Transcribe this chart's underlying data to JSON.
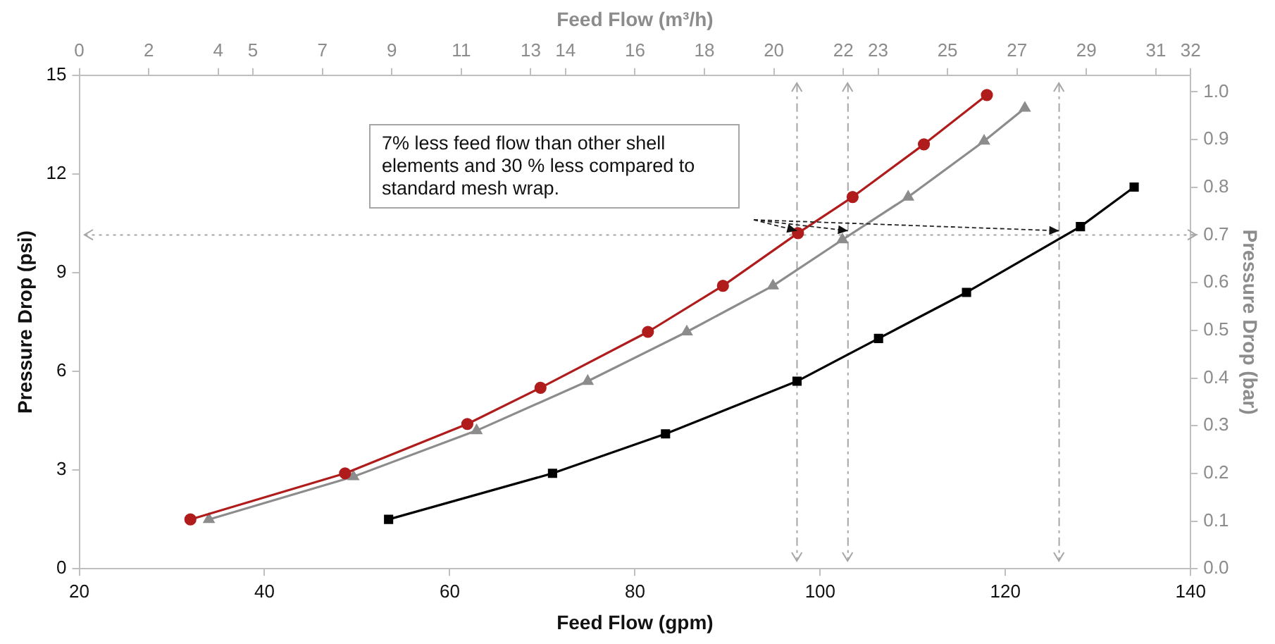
{
  "chart_data": {
    "type": "line",
    "xlabel": "Feed Flow (gpm)",
    "ylabel": "Pressure Drop (psi)",
    "x2label": "Feed Flow (m³/h)",
    "y2label": "Pressure Drop (bar)",
    "xlim": [
      20,
      140
    ],
    "xticks": [
      20,
      40,
      60,
      80,
      100,
      120,
      140
    ],
    "ylim": [
      0,
      15
    ],
    "yticks": [
      0,
      3,
      6,
      9,
      12,
      15
    ],
    "y2lim": [
      0,
      1.035
    ],
    "y2ticks": [
      {
        "value": 0,
        "label": "0.0"
      },
      {
        "value": 0.1,
        "label": "0.1"
      },
      {
        "value": 0.2,
        "label": "0.2"
      },
      {
        "value": 0.3,
        "label": "0.3"
      },
      {
        "value": 0.4,
        "label": "0.4"
      },
      {
        "value": 0.5,
        "label": "0.5"
      },
      {
        "value": 0.6,
        "label": "0.6"
      },
      {
        "value": 0.7,
        "label": "0.7"
      },
      {
        "value": 0.8,
        "label": "0.8"
      },
      {
        "value": 0.9,
        "label": "0.9"
      },
      {
        "value": 1,
        "label": "1.0"
      }
    ],
    "x2lim": [
      0,
      32
    ],
    "x2ticks": [
      0,
      2,
      4,
      5,
      7,
      9,
      11,
      13,
      14,
      16,
      18,
      20,
      22,
      23,
      25,
      27,
      29,
      31,
      32
    ],
    "grid": false,
    "legend": false,
    "series": [
      {
        "color": "#b01c1c",
        "marker": "circle",
        "x": [
          32.0,
          48.7,
          61.9,
          69.8,
          81.4,
          89.5,
          97.6,
          103.5,
          111.2,
          118.0
        ],
        "values": [
          1.5,
          2.9,
          4.4,
          5.5,
          7.2,
          8.6,
          10.2,
          11.3,
          12.9,
          14.4
        ]
      },
      {
        "color": "#8c8c8c",
        "marker": "triangle",
        "x": [
          34.0,
          49.6,
          62.9,
          74.9,
          85.6,
          94.9,
          102.4,
          109.5,
          117.7,
          122.1
        ],
        "values": [
          1.5,
          2.8,
          4.2,
          5.7,
          7.2,
          8.6,
          10.0,
          11.3,
          13.0,
          14.0
        ]
      },
      {
        "color": "#000000",
        "marker": "square",
        "x": [
          53.4,
          71.1,
          83.3,
          97.5,
          106.3,
          115.8,
          128.1,
          133.9
        ],
        "values": [
          1.5,
          2.9,
          4.1,
          5.7,
          7.0,
          8.4,
          10.4,
          11.6
        ]
      }
    ],
    "ref_lines": [
      {
        "axis": "x",
        "value": 97.5,
        "color": "#a6a6a6",
        "line_style": "dashed"
      },
      {
        "axis": "x",
        "value": 103,
        "color": "#a6a6a6",
        "line_style": "dashed"
      },
      {
        "axis": "x",
        "value": 125.8,
        "color": "#a6a6a6",
        "line_style": "dashed"
      },
      {
        "axis": "y2",
        "value": 0.7,
        "color": "#a6a6a6",
        "line_style": "dotted"
      }
    ],
    "annotations": [
      "7% less feed flow than other shell elements and 30 % less compared to standard mesh wrap."
    ]
  }
}
